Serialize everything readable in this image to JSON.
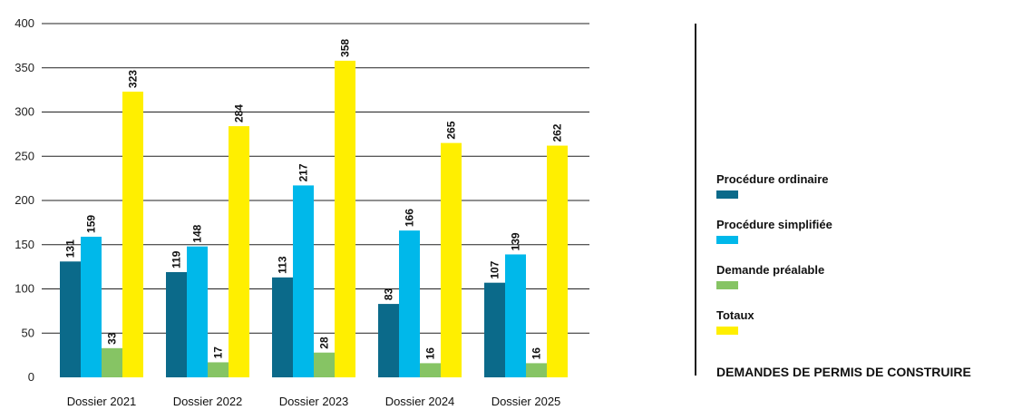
{
  "chart_data": {
    "type": "bar",
    "title": "DEMANDES DE PERMIS DE CONSTRUIRE",
    "categories": [
      "Dossier 2021",
      "Dossier 2022",
      "Dossier 2023",
      "Dossier 2024",
      "Dossier 2025"
    ],
    "series": [
      {
        "name": "Procédure ordinaire",
        "color": "#0b6a8a",
        "values": [
          131,
          119,
          113,
          83,
          107
        ]
      },
      {
        "name": "Procédure simplifiée",
        "color": "#00b8ea",
        "values": [
          159,
          148,
          217,
          166,
          139
        ]
      },
      {
        "name": "Demande préalable",
        "color": "#86c464",
        "values": [
          33,
          17,
          28,
          16,
          16
        ]
      },
      {
        "name": "Totaux",
        "color": "#ffef00",
        "values": [
          323,
          284,
          358,
          265,
          262
        ]
      }
    ],
    "ylim": [
      0,
      400
    ],
    "yticks": [
      0,
      50,
      100,
      150,
      200,
      250,
      300,
      350,
      400
    ],
    "grid": true,
    "legend_position": "right",
    "data_labels": true
  }
}
